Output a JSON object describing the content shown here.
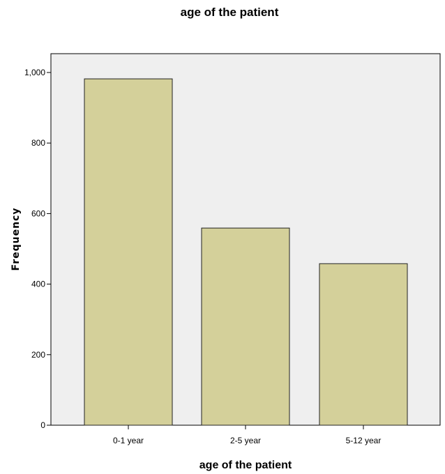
{
  "chart_data": {
    "type": "bar",
    "title": "age of the patient",
    "xlabel": "age of the patient",
    "ylabel": "Frequency",
    "categories": [
      "0-1 year",
      "2-5 year",
      "5-12 year"
    ],
    "values": [
      982,
      559,
      458
    ],
    "ylim": [
      0,
      1100
    ],
    "yticks": [
      0,
      200,
      400,
      600,
      800,
      1000
    ],
    "ytick_labels": [
      "0",
      "200",
      "400",
      "600",
      "800",
      "1,000"
    ],
    "grid": false,
    "colors": {
      "bar_fill": "#d4d09a",
      "bar_stroke": "#222222",
      "plot_background": "#efefef",
      "axis": "#000000"
    }
  }
}
